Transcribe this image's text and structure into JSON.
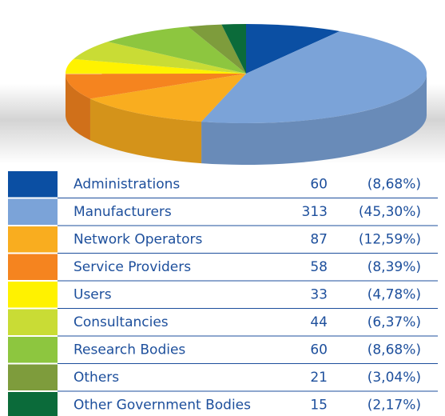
{
  "chart_data": {
    "type": "pie3d",
    "categories": [
      "Administrations",
      "Manufacturers",
      "Network Operators",
      "Service Providers",
      "Users",
      "Consultancies",
      "Research Bodies",
      "Others",
      "Other Government Bodies"
    ],
    "values": [
      60,
      313,
      87,
      58,
      33,
      44,
      60,
      21,
      15
    ],
    "percent_labels": [
      "(8,68%)",
      "(45,30%)",
      "(12,59%)",
      "(8,39%)",
      "(4,78%)",
      "(6,37%)",
      "(8,68%)",
      "(3,04%)",
      "(2,17%)"
    ],
    "colors": [
      "#0b4fa3",
      "#7ba3d8",
      "#f9ad1f",
      "#f5841f",
      "#fff200",
      "#c9dc35",
      "#8dc63f",
      "#7e9c3c",
      "#0b6b3a"
    ]
  }
}
